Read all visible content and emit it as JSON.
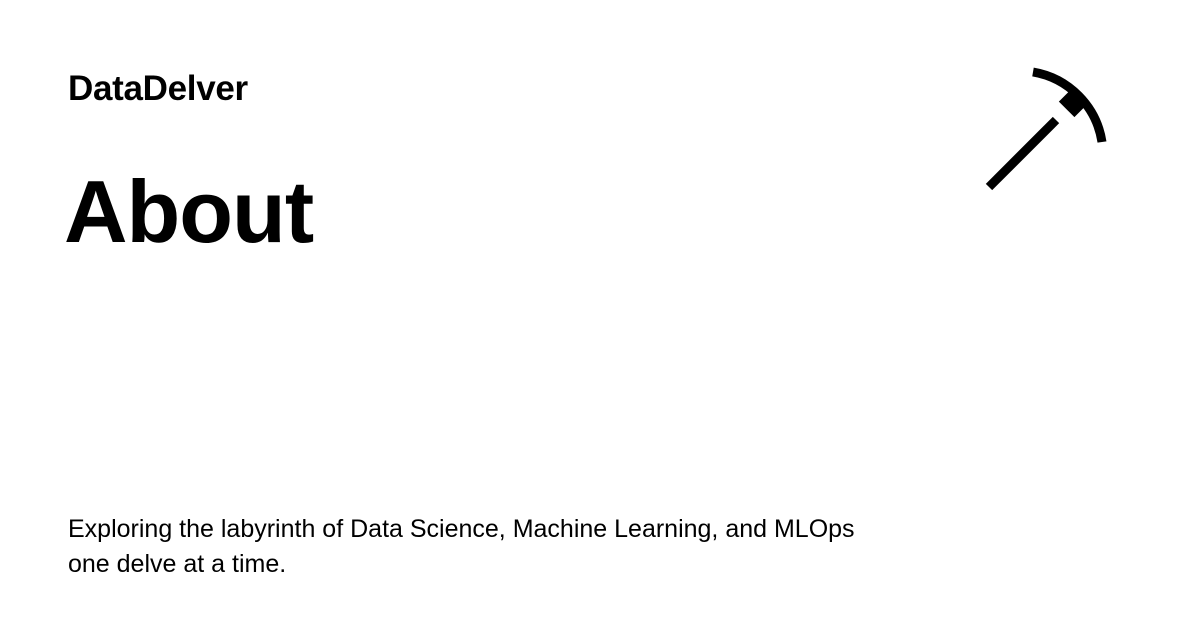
{
  "card": {
    "site_name": "DataDelver",
    "title": "About",
    "description": "Exploring the labyrinth of Data Science, Machine Learning, and MLOps one delve at a time.",
    "logo_icon": "pickaxe-icon",
    "background_color": "#ffffff",
    "text_color": "#000000"
  }
}
